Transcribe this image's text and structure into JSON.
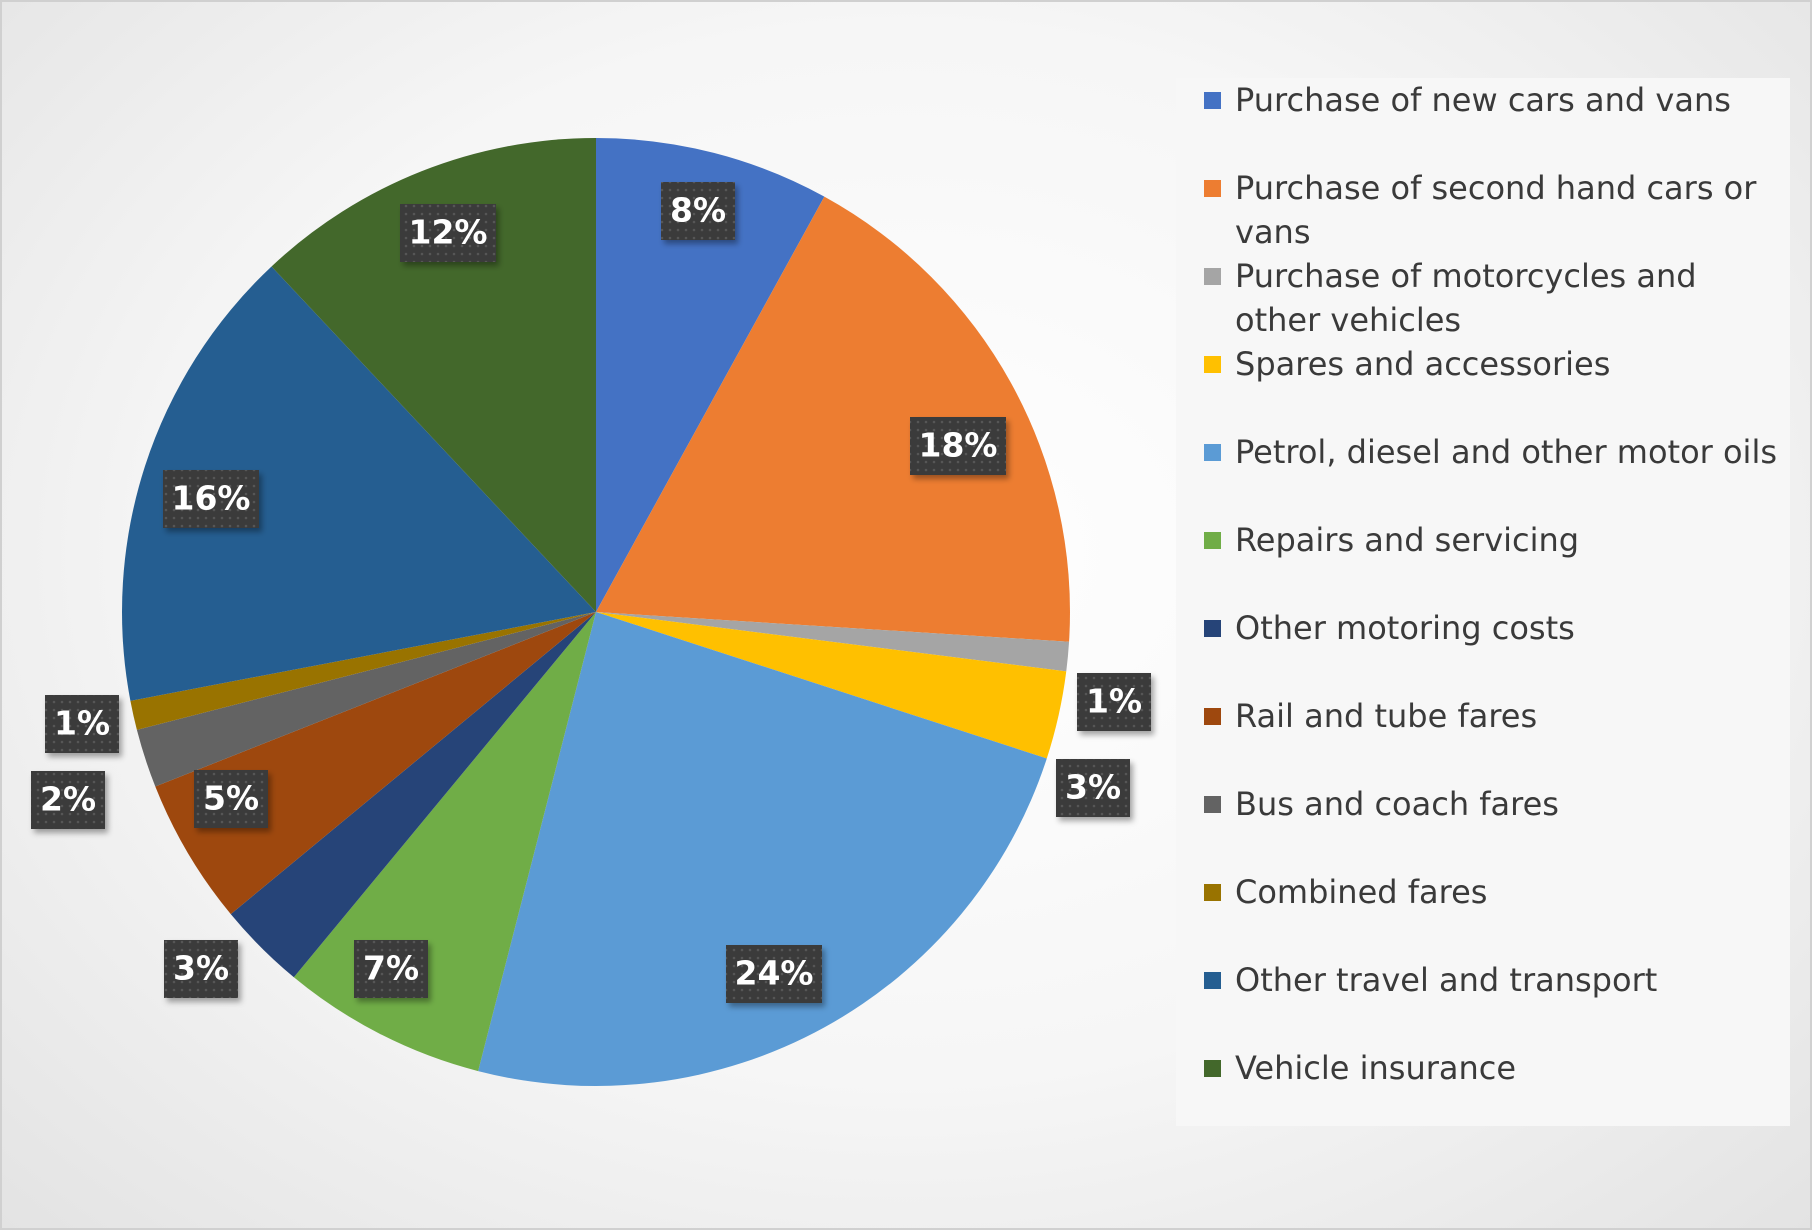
{
  "chart_data": {
    "type": "pie",
    "title": "",
    "legend_position": "right",
    "start_angle_deg": 0,
    "direction": "clockwise",
    "slices": [
      {
        "name": "Purchase of new cars and vans",
        "value": 8,
        "label": "8%",
        "color": "#4472C4"
      },
      {
        "name": "Purchase of second hand cars or vans",
        "value": 18,
        "label": "18%",
        "color": "#ED7D31"
      },
      {
        "name": "Purchase of motorcycles and other vehicles",
        "value": 1,
        "label": "1%",
        "color": "#A5A5A5"
      },
      {
        "name": "Spares and accessories",
        "value": 3,
        "label": "3%",
        "color": "#FFC000"
      },
      {
        "name": "Petrol, diesel and other motor oils",
        "value": 24,
        "label": "24%",
        "color": "#5B9BD5"
      },
      {
        "name": "Repairs and servicing",
        "value": 7,
        "label": "7%",
        "color": "#70AD47"
      },
      {
        "name": "Other motoring costs",
        "value": 3,
        "label": "3%",
        "color": "#264478"
      },
      {
        "name": "Rail and tube fares",
        "value": 5,
        "label": "5%",
        "color": "#9E480E"
      },
      {
        "name": "Bus and coach fares",
        "value": 2,
        "label": "2%",
        "color": "#636363"
      },
      {
        "name": "Combined fares",
        "value": 1,
        "label": "1%",
        "color": "#997300"
      },
      {
        "name": "Other travel and transport",
        "value": 16,
        "label": "16%",
        "color": "#255E91"
      },
      {
        "name": "Vehicle insurance",
        "value": 12,
        "label": "12%",
        "color": "#43682B"
      }
    ]
  },
  "legend": {
    "items": [
      {
        "label": "Purchase of new cars and vans",
        "color": "#4472C4"
      },
      {
        "label": "Purchase of second hand cars or vans",
        "color": "#ED7D31"
      },
      {
        "label": "Purchase of motorcycles and other vehicles",
        "color": "#A5A5A5"
      },
      {
        "label": "Spares and accessories",
        "color": "#FFC000"
      },
      {
        "label": "Petrol, diesel and other motor oils",
        "color": "#5B9BD5"
      },
      {
        "label": "Repairs and servicing",
        "color": "#70AD47"
      },
      {
        "label": "Other motoring costs",
        "color": "#264478"
      },
      {
        "label": "Rail and tube fares",
        "color": "#9E480E"
      },
      {
        "label": "Bus and coach fares",
        "color": "#636363"
      },
      {
        "label": "Combined fares",
        "color": "#997300"
      },
      {
        "label": "Other travel and transport",
        "color": "#255E91"
      },
      {
        "label": "Vehicle insurance",
        "color": "#43682B"
      }
    ]
  },
  "colors": {
    "label_box": "#3a3a3a",
    "label_text": "#ffffff",
    "legend_text": "#3a3a3a"
  }
}
